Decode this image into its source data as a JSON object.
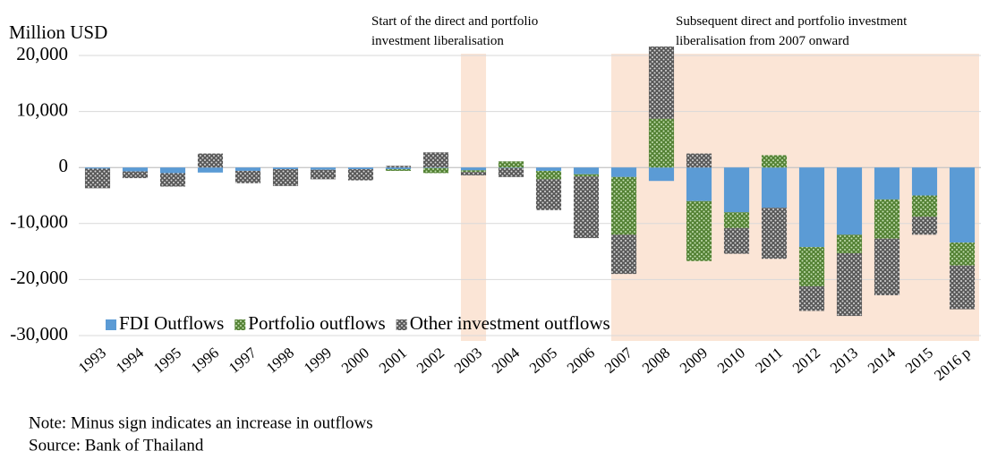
{
  "chart_data": {
    "type": "stacked_bar",
    "y_label": "Million USD",
    "categories": [
      "1993",
      "1994",
      "1995",
      "1996",
      "1997",
      "1998",
      "1999",
      "2000",
      "2001",
      "2002",
      "2003",
      "2004",
      "2005",
      "2006",
      "2007",
      "2008",
      "2009",
      "2010",
      "2011",
      "2012",
      "2013",
      "2014",
      "2015",
      "2016 p"
    ],
    "series": [
      {
        "name": "FDI Outflows",
        "color": "#5b9bd5",
        "values": [
          -200,
          -700,
          -1000,
          -900,
          -600,
          -300,
          -400,
          -300,
          -300,
          -100,
          -500,
          -100,
          -600,
          -1200,
          -1700,
          -2400,
          -6000,
          -8000,
          -7200,
          -14200,
          -12000,
          -5700,
          -5000,
          -13400
        ]
      },
      {
        "name": "Portfolio outflows",
        "color": "#548235",
        "values": [
          0,
          0,
          0,
          0,
          0,
          0,
          0,
          0,
          -300,
          -900,
          -300,
          1100,
          -1500,
          -400,
          -10300,
          8700,
          -10700,
          -2800,
          2200,
          -7000,
          -3300,
          -7000,
          -3800,
          -4100
        ]
      },
      {
        "name": "Other investment outflows",
        "color": "#595959",
        "values": [
          -3500,
          -1200,
          -2400,
          2500,
          -2200,
          -3000,
          -1700,
          -2000,
          300,
          2700,
          -600,
          -1600,
          -5500,
          -11000,
          -7000,
          12900,
          2500,
          -4600,
          -9100,
          -4400,
          -11200,
          -10100,
          -3200,
          -7800
        ]
      }
    ],
    "ylim": [
      -30000,
      21700
    ],
    "yticks": [
      {
        "value": 20000,
        "label": "20,000"
      },
      {
        "value": 10000,
        "label": "10,000"
      },
      0,
      {
        "value": -10000,
        "label": "-10,000"
      },
      {
        "value": -20000,
        "label": "-20,000"
      },
      {
        "value": -30000,
        "label": "-30,000"
      }
    ],
    "grid": true,
    "legend": "bottom-left",
    "annotations": [
      {
        "lines": [
          "Start of the direct and portfolio",
          "investment liberalisation"
        ],
        "from": "2003",
        "to": "2003",
        "shade": "#fbe5d6"
      },
      {
        "lines": [
          "Subsequent direct and portfolio investment",
          "liberalisation from 2007 onward"
        ],
        "from": "2007",
        "to": "2016 p",
        "shade": "#fbe5d6"
      }
    ],
    "notes": [
      "Note: Minus sign indicates an increase in outflows",
      "Source: Bank of Thailand"
    ]
  }
}
